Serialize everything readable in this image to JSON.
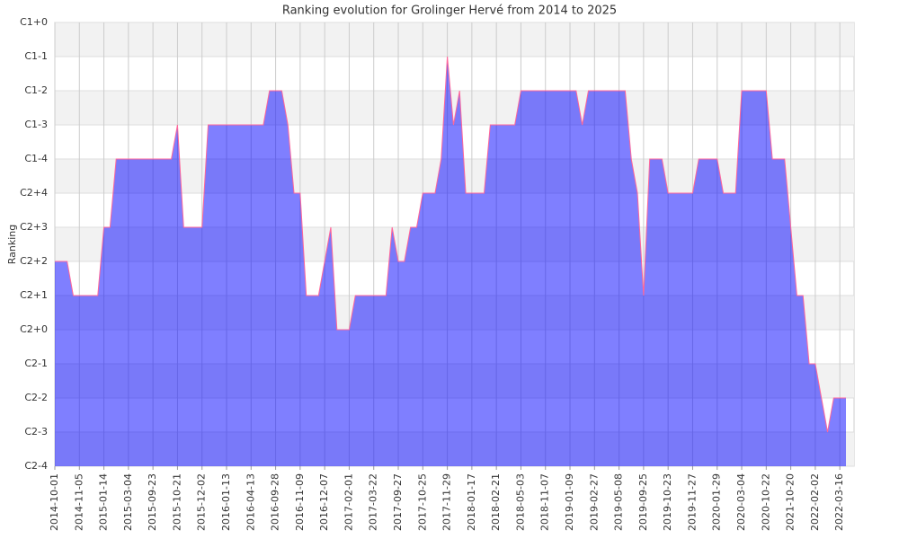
{
  "chart_data": {
    "type": "area",
    "title": "Ranking evolution for Grolinger Hervé from 2014 to 2025",
    "y_label": "Ranking",
    "color": "#0000ff",
    "line_color": "#ff6699",
    "grid": true,
    "categories": [
      "2014-10-01",
      null,
      null,
      null,
      "2014-11-05",
      null,
      null,
      null,
      "2015-01-14",
      null,
      null,
      null,
      "2015-03-04",
      null,
      null,
      null,
      "2015-09-23",
      null,
      null,
      null,
      "2015-10-21",
      null,
      null,
      null,
      "2015-12-02",
      null,
      null,
      null,
      "2016-01-13",
      null,
      null,
      null,
      "2016-04-13",
      null,
      null,
      null,
      "2016-09-28",
      null,
      null,
      null,
      "2016-11-09",
      null,
      null,
      null,
      "2016-12-07",
      null,
      null,
      null,
      "2017-02-01",
      null,
      null,
      null,
      "2017-03-22",
      null,
      null,
      null,
      "2017-09-27",
      null,
      null,
      null,
      "2017-10-25",
      null,
      null,
      null,
      "2017-11-29",
      null,
      null,
      null,
      "2018-01-17",
      null,
      null,
      null,
      "2018-02-21",
      null,
      null,
      null,
      "2018-05-03",
      null,
      null,
      null,
      "2018-11-07",
      null,
      null,
      null,
      "2019-01-09",
      null,
      null,
      null,
      "2019-02-27",
      null,
      null,
      null,
      "2019-05-08",
      null,
      null,
      null,
      "2019-09-25",
      null,
      null,
      null,
      "2019-10-23",
      null,
      null,
      null,
      "2019-11-27",
      null,
      null,
      null,
      "2020-01-29",
      null,
      null,
      null,
      "2020-03-04",
      null,
      null,
      null,
      "2020-10-22",
      null,
      null,
      null,
      "2021-10-20",
      null,
      null,
      null,
      "2022-02-02",
      null,
      null,
      null,
      "2022-03-16",
      null
    ],
    "values": [
      6,
      6,
      6,
      5,
      5,
      5,
      5,
      5,
      7,
      7,
      9,
      9,
      9,
      9,
      9,
      9,
      9,
      9,
      9,
      9,
      10,
      7,
      7,
      7,
      7,
      10,
      10,
      10,
      10,
      10,
      10,
      10,
      10,
      10,
      10,
      11,
      11,
      11,
      10,
      8,
      8,
      5,
      5,
      5,
      6,
      7,
      4,
      4,
      4,
      5,
      5,
      5,
      5,
      5,
      5,
      7,
      6,
      6,
      7,
      7,
      8,
      8,
      8,
      9,
      12,
      10,
      11,
      8,
      8,
      8,
      8,
      10,
      10,
      10,
      10,
      10,
      11,
      11,
      11,
      11,
      11,
      11,
      11,
      11,
      11,
      11,
      10,
      11,
      11,
      11,
      11,
      11,
      11,
      11,
      9,
      8,
      5,
      9,
      9,
      9,
      8,
      8,
      8,
      8,
      8,
      9,
      9,
      9,
      9,
      8,
      8,
      8,
      11,
      11,
      11,
      11,
      11,
      9,
      9,
      9,
      7,
      5,
      5,
      3,
      3,
      2,
      1,
      2,
      2,
      2
    ],
    "ylim": [
      0,
      13
    ],
    "yticks": [
      {
        "value": 0,
        "label": "C2-4"
      },
      {
        "value": 1,
        "label": "C2-3"
      },
      {
        "value": 2,
        "label": "C2-2"
      },
      {
        "value": 3,
        "label": "C2-1"
      },
      {
        "value": 4,
        "label": "C2+0"
      },
      {
        "value": 5,
        "label": "C2+1"
      },
      {
        "value": 6,
        "label": "C2+2"
      },
      {
        "value": 7,
        "label": "C2+3"
      },
      {
        "value": 8,
        "label": "C2+4"
      },
      {
        "value": 9,
        "label": "C1-4"
      },
      {
        "value": 10,
        "label": "C1-3"
      },
      {
        "value": 11,
        "label": "C1-2"
      },
      {
        "value": 12,
        "label": "C1-1"
      },
      {
        "value": 13,
        "label": "C1+0"
      }
    ]
  }
}
